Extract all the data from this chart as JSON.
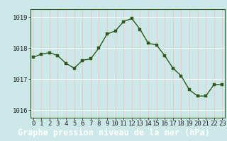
{
  "x": [
    0,
    1,
    2,
    3,
    4,
    5,
    6,
    7,
    8,
    9,
    10,
    11,
    12,
    13,
    14,
    15,
    16,
    17,
    18,
    19,
    20,
    21,
    22,
    23
  ],
  "y": [
    1017.7,
    1017.8,
    1017.85,
    1017.75,
    1017.5,
    1017.35,
    1017.6,
    1017.65,
    1018.0,
    1018.45,
    1018.55,
    1018.85,
    1018.95,
    1018.6,
    1018.15,
    1018.1,
    1017.75,
    1017.35,
    1017.1,
    1016.65,
    1016.45,
    1016.45,
    1016.82,
    1016.82
  ],
  "line_color": "#2d5a1b",
  "marker_color": "#2d5a1b",
  "bg_color": "#cce8e8",
  "plot_bg": "#cce8e8",
  "vgrid_color": "#f5c0c0",
  "hgrid_color": "#ffffff",
  "bottom_bar_color": "#2d5a1b",
  "bottom_text_color": "#ffffff",
  "xlabel": "Graphe pression niveau de la mer (hPa)",
  "xlabel_fontsize": 8.5,
  "ylim": [
    1015.75,
    1019.25
  ],
  "ytick_vals": [
    1016,
    1017,
    1018,
    1019
  ],
  "ytick_labels": [
    "1016",
    "1017",
    "1018",
    "1019"
  ],
  "xlim": [
    -0.3,
    23.3
  ],
  "xticks": [
    0,
    1,
    2,
    3,
    4,
    5,
    6,
    7,
    8,
    9,
    10,
    11,
    12,
    13,
    14,
    15,
    16,
    17,
    18,
    19,
    20,
    21,
    22,
    23
  ],
  "tick_fontsize": 6.5,
  "line_width": 1.0,
  "marker_size": 2.5,
  "spine_color": "#2d5a1b"
}
